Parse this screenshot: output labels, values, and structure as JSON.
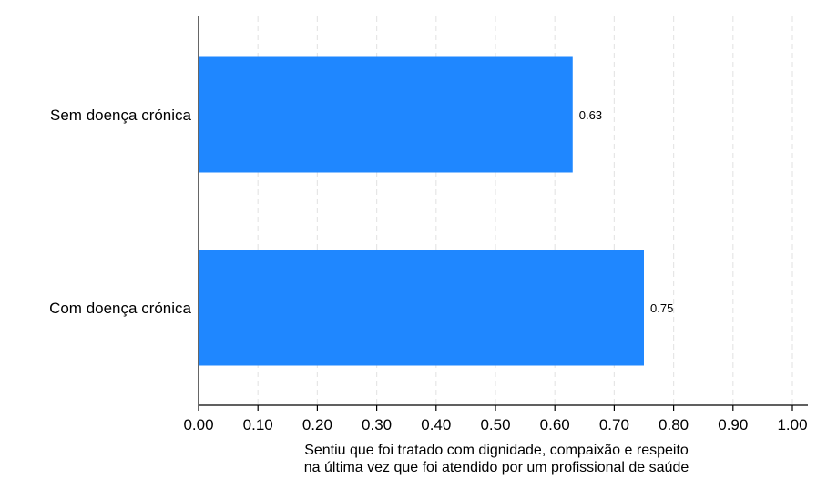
{
  "chart_data": {
    "type": "bar",
    "orientation": "horizontal",
    "categories": [
      "Sem doença crónica",
      "Com doença crónica"
    ],
    "values": [
      0.63,
      0.75
    ],
    "value_labels": [
      "0.63",
      "0.75"
    ],
    "xlim": [
      0,
      1
    ],
    "x_ticks": [
      0,
      0.1,
      0.2,
      0.3,
      0.4,
      0.5,
      0.6,
      0.7,
      0.8,
      0.9,
      1.0
    ],
    "x_tick_labels": [
      "0.00",
      "0.10",
      "0.20",
      "0.30",
      "0.40",
      "0.50",
      "0.60",
      "0.70",
      "0.80",
      "0.90",
      "1.00"
    ],
    "xlabel_lines": [
      "Sentiu que foi tratado com dignidade, compaixão e respeito",
      "na última vez que foi atendido por um profissional de saúde"
    ],
    "ylabel": "",
    "title": "",
    "grid": "vertical dashed",
    "legend": "none",
    "bar_color": "#1f87ff",
    "grid_color": "#e6e6e6"
  }
}
